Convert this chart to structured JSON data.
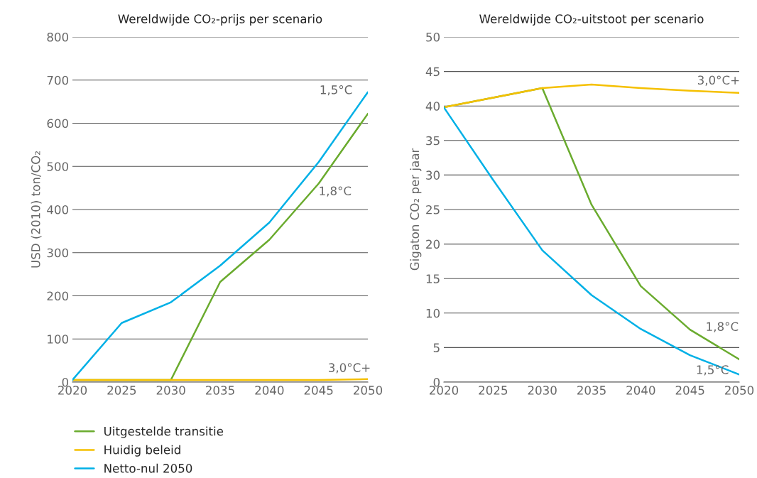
{
  "chart_data": [
    {
      "type": "line",
      "title": "Wereldwijde CO₂-prijs per scenario",
      "ylabel": "USD (2010) ton/CO₂",
      "x": [
        2020,
        2025,
        2030,
        2035,
        2040,
        2045,
        2050
      ],
      "xlim": [
        2020,
        2050
      ],
      "xticks": [
        2020,
        2025,
        2030,
        2035,
        2040,
        2045,
        2050
      ],
      "ylim": [
        0,
        800
      ],
      "yticks": [
        0,
        100,
        200,
        300,
        400,
        500,
        600,
        700,
        800
      ],
      "grid": "y",
      "legend": "bottom",
      "marker": "none",
      "line_style": "solid",
      "series": [
        {
          "name": "Uitgestelde transitie",
          "color": "#6aab2e",
          "values": [
            5,
            5,
            5,
            232,
            330,
            460,
            622
          ]
        },
        {
          "name": "Huidig beleid",
          "color": "#f5c000",
          "values": [
            5,
            5,
            5,
            5,
            5,
            5,
            7
          ]
        },
        {
          "name": "Netto-nul 2050",
          "color": "#00b0e6",
          "values": [
            5,
            137,
            185,
            270,
            370,
            510,
            672
          ]
        }
      ],
      "annotations": [
        "1,5°C",
        "1,8°C",
        "3,0°C+"
      ]
    },
    {
      "type": "line",
      "title": "Wereldwijde CO₂-uitstoot per scenario",
      "ylabel": "Gigaton CO₂ per jaar",
      "x": [
        2020,
        2025,
        2030,
        2035,
        2040,
        2045,
        2050
      ],
      "xlim": [
        2020,
        2050
      ],
      "xticks": [
        2020,
        2025,
        2030,
        2035,
        2040,
        2045,
        2050
      ],
      "ylim": [
        0,
        50
      ],
      "yticks": [
        0,
        5,
        10,
        15,
        20,
        25,
        30,
        35,
        40,
        45,
        50
      ],
      "grid": "y",
      "marker": "none",
      "line_style": "solid",
      "series": [
        {
          "color": "#6aab2e",
          "values": [
            39.8,
            41.2,
            42.6,
            25.7,
            13.9,
            7.6,
            3.3
          ]
        },
        {
          "color": "#f5c000",
          "values": [
            39.8,
            41.2,
            42.6,
            43.1,
            42.6,
            42.2,
            41.9
          ]
        },
        {
          "color": "#00b0e6",
          "values": [
            39.8,
            29.3,
            19.1,
            12.6,
            7.7,
            3.9,
            1.1
          ]
        }
      ],
      "annotations": [
        "3,0°C+",
        "1,8°C",
        "1,5°C"
      ]
    }
  ]
}
